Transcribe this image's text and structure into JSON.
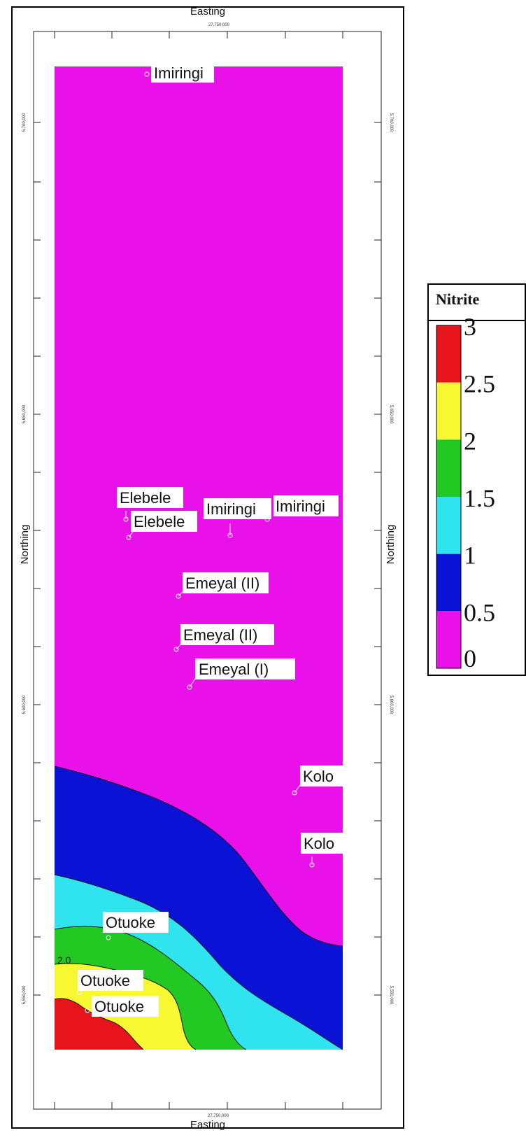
{
  "map": {
    "top_axis_title": "Easting",
    "bottom_axis_title": "Easting",
    "left_axis_title": "Northing",
    "right_axis_title": "Northing",
    "top_tick_label": "27,750,000",
    "bottom_tick_label": "27,750,000",
    "northing_tick_labels": [
      "5,700,000",
      "5,650,000",
      "5,600,000",
      "5,550,000"
    ],
    "contour_label": "2.0"
  },
  "sites": [
    {
      "id": "imiringi-top",
      "name": "Imiringi"
    },
    {
      "id": "elebele-1",
      "name": "Elebele"
    },
    {
      "id": "elebele-2",
      "name": "Elebele"
    },
    {
      "id": "imiringi-mid-1",
      "name": "Imiringi"
    },
    {
      "id": "imiringi-mid-2",
      "name": "Imiringi"
    },
    {
      "id": "emeyal-ii-1",
      "name": "Emeyal (II)"
    },
    {
      "id": "emeyal-ii-2",
      "name": "Emeyal (II)"
    },
    {
      "id": "emeyal-i",
      "name": "Emeyal (I)"
    },
    {
      "id": "kolo-1",
      "name": "Kolo"
    },
    {
      "id": "kolo-2",
      "name": "Kolo"
    },
    {
      "id": "otuoke-1",
      "name": "Otuoke"
    },
    {
      "id": "otuoke-2",
      "name": "Otuoke"
    },
    {
      "id": "otuoke-3",
      "name": "Otuoke"
    }
  ],
  "legend": {
    "title": "Nitrite",
    "ticks": [
      "3",
      "2.5",
      "2",
      "1.5",
      "1",
      "0.5",
      "0"
    ],
    "bands": [
      {
        "range": "2.5-3",
        "color": "#e8141c"
      },
      {
        "range": "2-2.5",
        "color": "#f8f832"
      },
      {
        "range": "1.5-2",
        "color": "#22c922"
      },
      {
        "range": "1-1.5",
        "color": "#2fe4ee"
      },
      {
        "range": "0.5-1",
        "color": "#0a12d6"
      },
      {
        "range": "0-0.5",
        "color": "#ea10ea"
      }
    ]
  },
  "colors": {
    "band_2.5_3": "#e8141c",
    "band_2_2.5": "#f8f832",
    "band_1.5_2": "#22c922",
    "band_1_1.5": "#2fe4ee",
    "band_0.5_1": "#0a12d6",
    "band_0_0.5": "#ea10ea"
  }
}
